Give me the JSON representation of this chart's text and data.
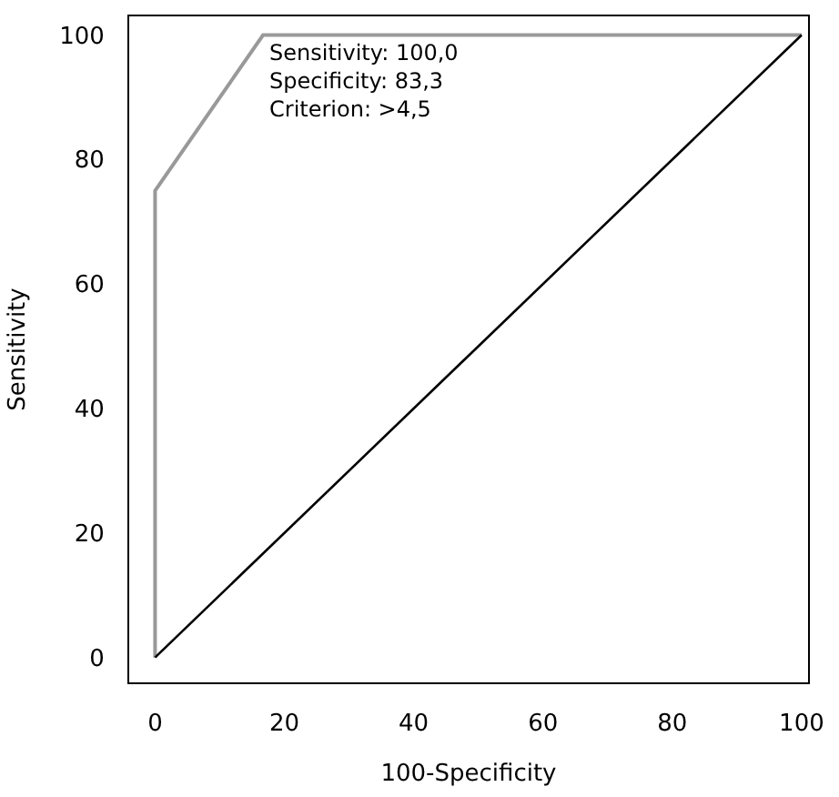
{
  "chart_data": {
    "type": "line",
    "xlabel": "100-Specificity",
    "ylabel": "Sensitivity",
    "series": [
      {
        "x": [
          0,
          0,
          16.7,
          100
        ],
        "values": [
          0,
          75,
          100,
          100
        ],
        "color": "#999999"
      },
      {
        "x": [
          0,
          100
        ],
        "values": [
          0,
          100
        ],
        "color": "#000000"
      }
    ],
    "xlim": [
      -4,
      101
    ],
    "ylim": [
      -4,
      103
    ],
    "xticks": [
      0,
      20,
      40,
      60,
      80,
      100
    ],
    "yticks": [
      0,
      20,
      40,
      60,
      80,
      100
    ],
    "marker": "none",
    "line_style": "solid",
    "annotations": [
      "Sensitivity: 100,0\nSpecificity: 83,3\nCriterion: >4,5"
    ]
  }
}
